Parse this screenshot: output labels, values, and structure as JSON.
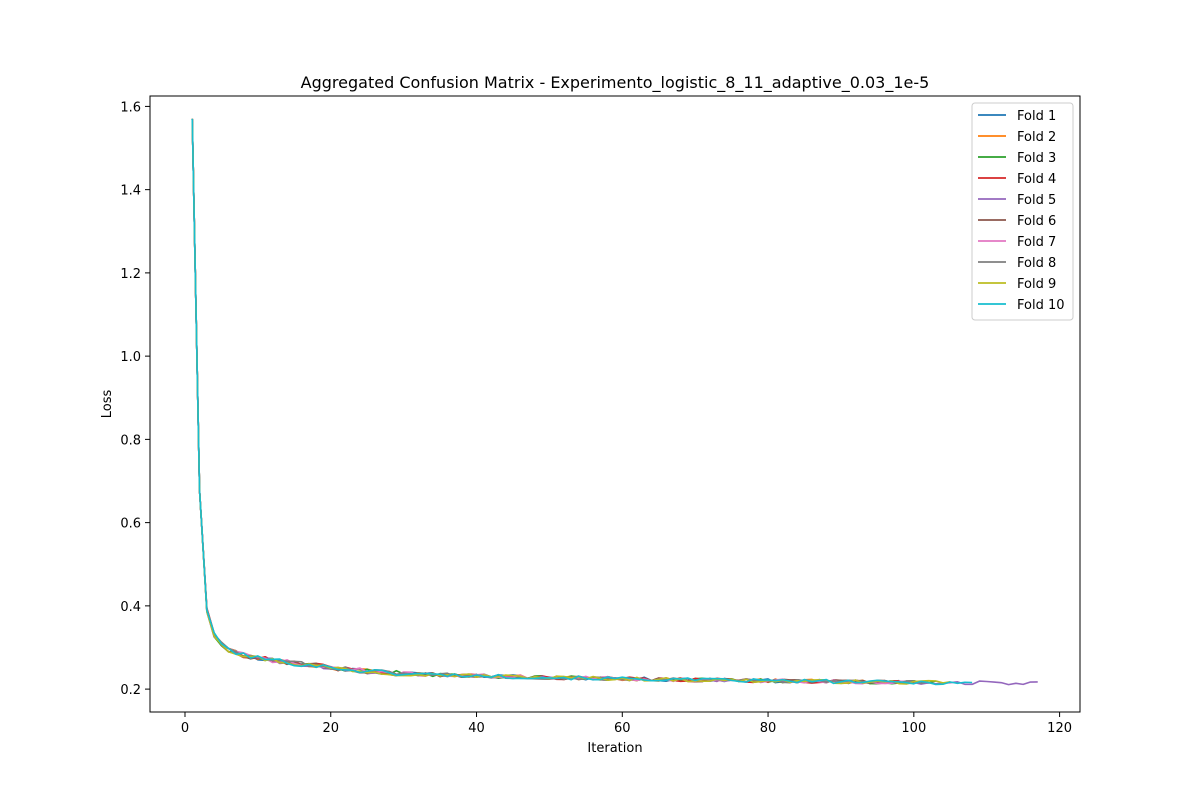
{
  "chart_data": {
    "type": "line",
    "title": "Aggregated Confusion Matrix - Experimento_logistic_8_11_adaptive_0.03_1e-5",
    "xlabel": "Iteration",
    "ylabel": "Loss",
    "xlim": [
      -4.8,
      122.8
    ],
    "ylim": [
      0.145,
      1.625
    ],
    "xticks": [
      0,
      20,
      40,
      60,
      80,
      100,
      120
    ],
    "yticks": [
      0.2,
      0.4,
      0.6,
      0.8,
      1.0,
      1.2,
      1.4,
      1.6
    ],
    "ytick_labels": [
      "0.2",
      "0.4",
      "0.6",
      "0.8",
      "1.0",
      "1.2",
      "1.4",
      "1.6"
    ],
    "grid": false,
    "legend_position": "top-right",
    "base_curve": {
      "x": [
        1,
        2,
        3,
        4,
        5,
        6,
        7,
        8,
        10,
        12,
        15,
        20,
        25,
        30,
        40,
        50,
        60,
        70,
        80,
        90,
        100,
        110,
        117
      ],
      "y": [
        1.57,
        0.68,
        0.39,
        0.33,
        0.31,
        0.295,
        0.288,
        0.282,
        0.275,
        0.27,
        0.262,
        0.252,
        0.243,
        0.237,
        0.232,
        0.228,
        0.225,
        0.222,
        0.22,
        0.218,
        0.216,
        0.215,
        0.214
      ]
    },
    "series": [
      {
        "name": "Fold 1",
        "color": "#1f77b4",
        "x_end": 98,
        "seed": 11
      },
      {
        "name": "Fold 2",
        "color": "#ff7f0e",
        "x_end": 99,
        "seed": 23
      },
      {
        "name": "Fold 3",
        "color": "#2ca02c",
        "x_end": 103,
        "seed": 37
      },
      {
        "name": "Fold 4",
        "color": "#d62728",
        "x_end": 100,
        "seed": 41
      },
      {
        "name": "Fold 5",
        "color": "#9467bd",
        "x_end": 117,
        "seed": 53
      },
      {
        "name": "Fold 6",
        "color": "#8c564b",
        "x_end": 102,
        "seed": 67
      },
      {
        "name": "Fold 7",
        "color": "#e377c2",
        "x_end": 101,
        "seed": 71
      },
      {
        "name": "Fold 8",
        "color": "#7f7f7f",
        "x_end": 102,
        "seed": 83
      },
      {
        "name": "Fold 9",
        "color": "#bcbd22",
        "x_end": 105,
        "seed": 97
      },
      {
        "name": "Fold 10",
        "color": "#17becf",
        "x_end": 108,
        "seed": 101
      }
    ]
  }
}
